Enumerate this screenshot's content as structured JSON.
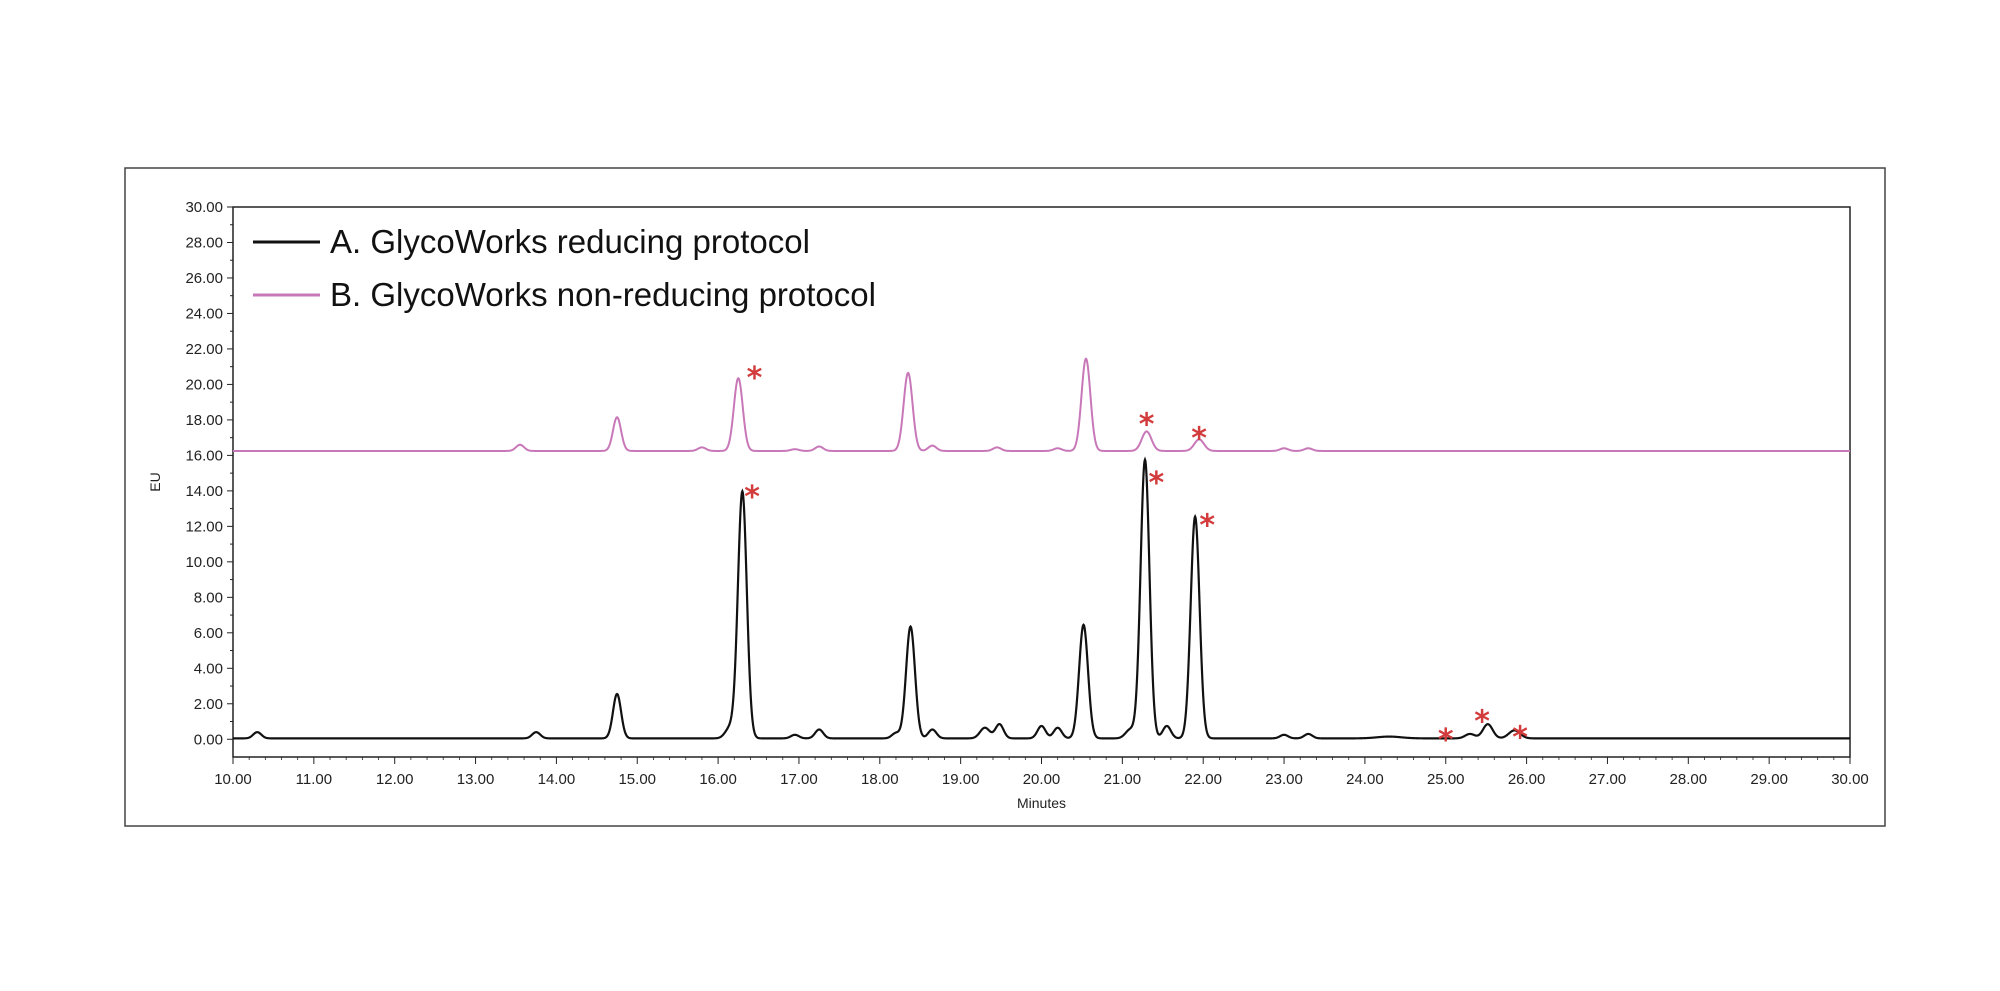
{
  "chart_data": {
    "type": "line",
    "title": "",
    "xlabel": "Minutes",
    "ylabel": "EU",
    "xlim": [
      10,
      30
    ],
    "ylim": [
      -1,
      30
    ],
    "x_ticks": [
      "10.00",
      "11.00",
      "12.00",
      "13.00",
      "14.00",
      "15.00",
      "16.00",
      "17.00",
      "18.00",
      "19.00",
      "20.00",
      "21.00",
      "22.00",
      "23.00",
      "24.00",
      "25.00",
      "26.00",
      "27.00",
      "28.00",
      "29.00",
      "30.00"
    ],
    "y_ticks": [
      "0.00",
      "2.00",
      "4.00",
      "6.00",
      "8.00",
      "10.00",
      "12.00",
      "14.00",
      "16.00",
      "18.00",
      "20.00",
      "22.00",
      "24.00",
      "26.00",
      "28.00",
      "30.00"
    ],
    "legend": "top-left",
    "grid": false,
    "series": [
      {
        "name": "A. GlycoWorks reducing protocol",
        "color": "#111111",
        "baseline": 0.05,
        "peaks": [
          [
            10.3,
            0.35,
            0.05
          ],
          [
            13.75,
            0.35,
            0.05
          ],
          [
            14.75,
            2.5,
            0.05
          ],
          [
            16.15,
            0.6,
            0.06
          ],
          [
            16.3,
            13.9,
            0.055
          ],
          [
            16.95,
            0.2,
            0.05
          ],
          [
            17.25,
            0.5,
            0.05
          ],
          [
            18.2,
            0.3,
            0.05
          ],
          [
            18.38,
            6.3,
            0.055
          ],
          [
            18.65,
            0.5,
            0.05
          ],
          [
            19.3,
            0.6,
            0.06
          ],
          [
            19.48,
            0.8,
            0.05
          ],
          [
            20.0,
            0.7,
            0.05
          ],
          [
            20.2,
            0.6,
            0.05
          ],
          [
            20.52,
            6.4,
            0.055
          ],
          [
            21.1,
            0.5,
            0.06
          ],
          [
            21.28,
            15.7,
            0.055
          ],
          [
            21.55,
            0.7,
            0.05
          ],
          [
            21.9,
            12.5,
            0.055
          ],
          [
            23.0,
            0.2,
            0.05
          ],
          [
            23.3,
            0.25,
            0.05
          ],
          [
            24.3,
            0.1,
            0.15
          ],
          [
            25.3,
            0.25,
            0.06
          ],
          [
            25.52,
            0.8,
            0.06
          ],
          [
            25.85,
            0.45,
            0.07
          ]
        ]
      },
      {
        "name": "B. GlycoWorks non-reducing protocol",
        "color": "#c878b8",
        "baseline": 16.25,
        "peaks": [
          [
            13.55,
            0.35,
            0.05
          ],
          [
            14.75,
            1.9,
            0.05
          ],
          [
            15.8,
            0.2,
            0.05
          ],
          [
            16.25,
            4.1,
            0.055
          ],
          [
            16.95,
            0.1,
            0.05
          ],
          [
            17.25,
            0.25,
            0.05
          ],
          [
            18.35,
            4.4,
            0.055
          ],
          [
            18.65,
            0.3,
            0.05
          ],
          [
            19.45,
            0.2,
            0.05
          ],
          [
            20.2,
            0.15,
            0.05
          ],
          [
            20.55,
            5.2,
            0.055
          ],
          [
            21.3,
            1.1,
            0.06
          ],
          [
            21.95,
            0.65,
            0.06
          ],
          [
            23.0,
            0.15,
            0.05
          ],
          [
            23.3,
            0.15,
            0.05
          ]
        ]
      }
    ],
    "annotations": [
      {
        "text": "*",
        "x": 16.45,
        "y": 20.8
      },
      {
        "text": "*",
        "x": 16.42,
        "y": 14.1
      },
      {
        "text": "*",
        "x": 21.3,
        "y": 18.2
      },
      {
        "text": "*",
        "x": 21.95,
        "y": 17.4
      },
      {
        "text": "*",
        "x": 21.42,
        "y": 14.9
      },
      {
        "text": "*",
        "x": 22.05,
        "y": 12.5
      },
      {
        "text": "*",
        "x": 25.0,
        "y": 0.4
      },
      {
        "text": "*",
        "x": 25.45,
        "y": 1.45
      },
      {
        "text": "*",
        "x": 25.92,
        "y": 0.55
      }
    ]
  }
}
